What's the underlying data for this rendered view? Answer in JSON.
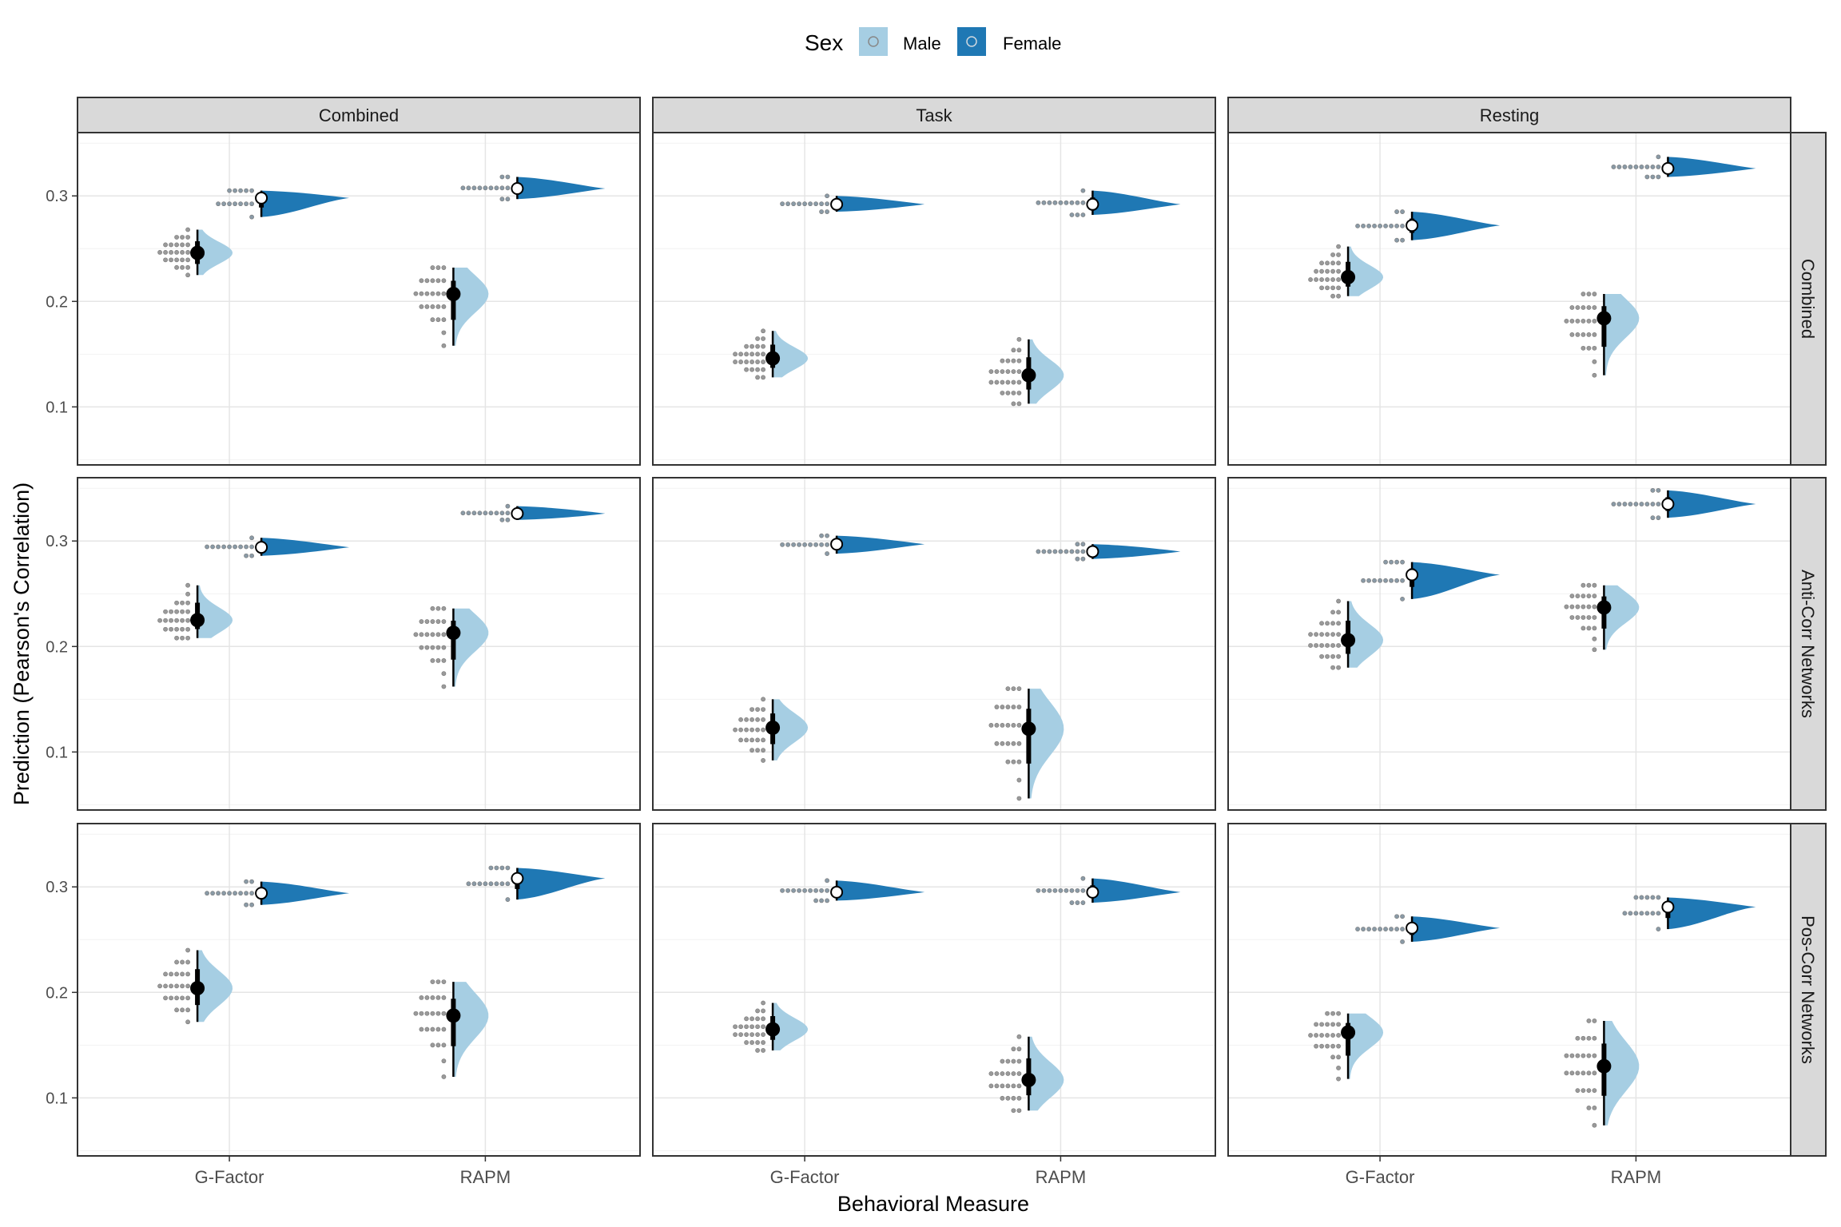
{
  "chart_data": {
    "type": "raincloud",
    "xlabel": "Behavioral Measure",
    "ylabel": "Prediction (Pearson's Correlation)",
    "ylim": [
      0.045,
      0.36
    ],
    "y_ticks": [
      0.1,
      0.2,
      0.3
    ],
    "y_tick_labels": [
      "0.1",
      "0.2",
      "0.3"
    ],
    "categories": [
      "G-Factor",
      "RAPM"
    ],
    "column_facets": [
      "Combined",
      "Task",
      "Resting"
    ],
    "row_facets": [
      "Combined",
      "Anti-Corr Networks",
      "Pos-Corr Networks"
    ],
    "legend": {
      "title": "Sex",
      "entries": [
        "Male",
        "Female"
      ],
      "position": "top"
    },
    "colors": {
      "Male": "#a6cee3",
      "Female": "#1f78b4",
      "dots": "#9a9a9a",
      "summary": "#000000",
      "strip": "#d9d9d9"
    },
    "grid": true,
    "series": [
      {
        "name": "Male",
        "values": [
          [
            [
              0.246,
              0.207
            ],
            [
              0.146,
              0.13
            ],
            [
              0.223,
              0.184
            ]
          ],
          [
            [
              0.225,
              0.213
            ],
            [
              0.123,
              0.122
            ],
            [
              0.206,
              0.237
            ]
          ],
          [
            [
              0.204,
              0.178
            ],
            [
              0.165,
              0.117
            ],
            [
              0.162,
              0.13
            ]
          ]
        ]
      },
      {
        "name": "Female",
        "values": [
          [
            [
              0.298,
              0.307
            ],
            [
              0.292,
              0.292
            ],
            [
              0.272,
              0.326
            ]
          ],
          [
            [
              0.294,
              0.326
            ],
            [
              0.297,
              0.29
            ],
            [
              0.268,
              0.335
            ]
          ],
          [
            [
              0.294,
              0.308
            ],
            [
              0.295,
              0.295
            ],
            [
              0.261,
              0.281
            ]
          ]
        ]
      }
    ],
    "ranges": [
      {
        "name": "Male",
        "values": [
          [
            [
              [
                0.225,
                0.268
              ],
              [
                0.158,
                0.232
              ]
            ],
            [
              [
                0.128,
                0.172
              ],
              [
                0.103,
                0.164
              ]
            ],
            [
              [
                0.205,
                0.252
              ],
              [
                0.13,
                0.207
              ]
            ]
          ],
          [
            [
              [
                0.208,
                0.258
              ],
              [
                0.162,
                0.236
              ]
            ],
            [
              [
                0.092,
                0.15
              ],
              [
                0.056,
                0.16
              ]
            ],
            [
              [
                0.18,
                0.243
              ],
              [
                0.197,
                0.258
              ]
            ]
          ],
          [
            [
              [
                0.172,
                0.24
              ],
              [
                0.12,
                0.21
              ]
            ],
            [
              [
                0.145,
                0.19
              ],
              [
                0.088,
                0.158
              ]
            ],
            [
              [
                0.118,
                0.18
              ],
              [
                0.074,
                0.173
              ]
            ]
          ]
        ]
      },
      {
        "name": "Female",
        "values": [
          [
            [
              [
                0.28,
                0.305
              ],
              [
                0.297,
                0.318
              ]
            ],
            [
              [
                0.285,
                0.3
              ],
              [
                0.282,
                0.305
              ]
            ],
            [
              [
                0.258,
                0.285
              ],
              [
                0.318,
                0.337
              ]
            ]
          ],
          [
            [
              [
                0.286,
                0.303
              ],
              [
                0.32,
                0.333
              ]
            ],
            [
              [
                0.288,
                0.305
              ],
              [
                0.283,
                0.297
              ]
            ],
            [
              [
                0.245,
                0.28
              ],
              [
                0.322,
                0.348
              ]
            ]
          ],
          [
            [
              [
                0.283,
                0.305
              ],
              [
                0.288,
                0.318
              ]
            ],
            [
              [
                0.287,
                0.306
              ],
              [
                0.285,
                0.308
              ]
            ],
            [
              [
                0.248,
                0.272
              ],
              [
                0.26,
                0.29
              ]
            ]
          ]
        ]
      }
    ]
  }
}
